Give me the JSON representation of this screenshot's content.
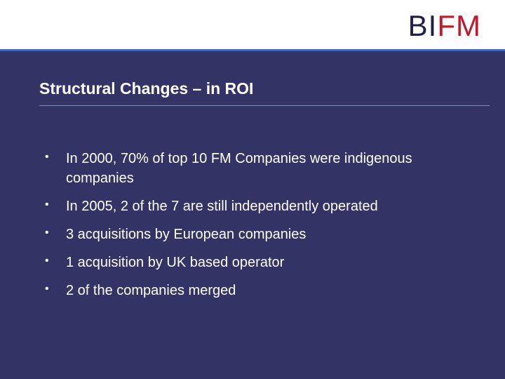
{
  "logo": {
    "part1": "BI",
    "part2": "FM"
  },
  "slide": {
    "title": "Structural Changes – in ROI",
    "bullets": [
      {
        "text": "In 2000, 70% of top 10 FM Companies were indigenous companies"
      },
      {
        "text": "In 2005, 2 of the 7 are still independently operated"
      },
      {
        "text": "3 acquisitions by European companies"
      },
      {
        "text": "1 acquisition by UK based operator"
      },
      {
        "text": "2 of the companies merged"
      }
    ]
  },
  "colors": {
    "background": "#333366",
    "accent_rule": "#3d66b8",
    "logo_dark": "#1f1f4a",
    "logo_red": "#c0192a",
    "text": "#ffffff"
  }
}
